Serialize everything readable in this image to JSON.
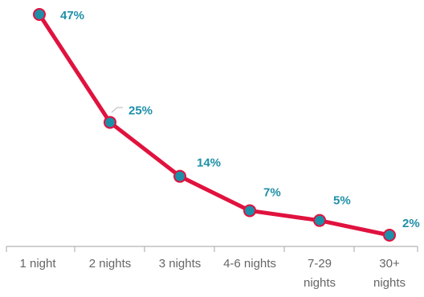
{
  "chart_data": {
    "type": "line",
    "categories": [
      [
        "1 night"
      ],
      [
        "2 nights"
      ],
      [
        "3 nights"
      ],
      [
        "4-6 nights"
      ],
      [
        "7-29",
        "nights"
      ],
      [
        "30+",
        "nights"
      ]
    ],
    "values": [
      47,
      25,
      14,
      7,
      5,
      2
    ],
    "data_labels": [
      "47%",
      "25%",
      "14%",
      "7%",
      "5%",
      "2%"
    ],
    "ylim": [
      0,
      50
    ],
    "line_color": "#e0123e",
    "marker_fill": "#1e8fa8",
    "label_color": "#1e8fa8",
    "axis_color": "#b5b5b5",
    "grid": false,
    "legend": "none"
  }
}
